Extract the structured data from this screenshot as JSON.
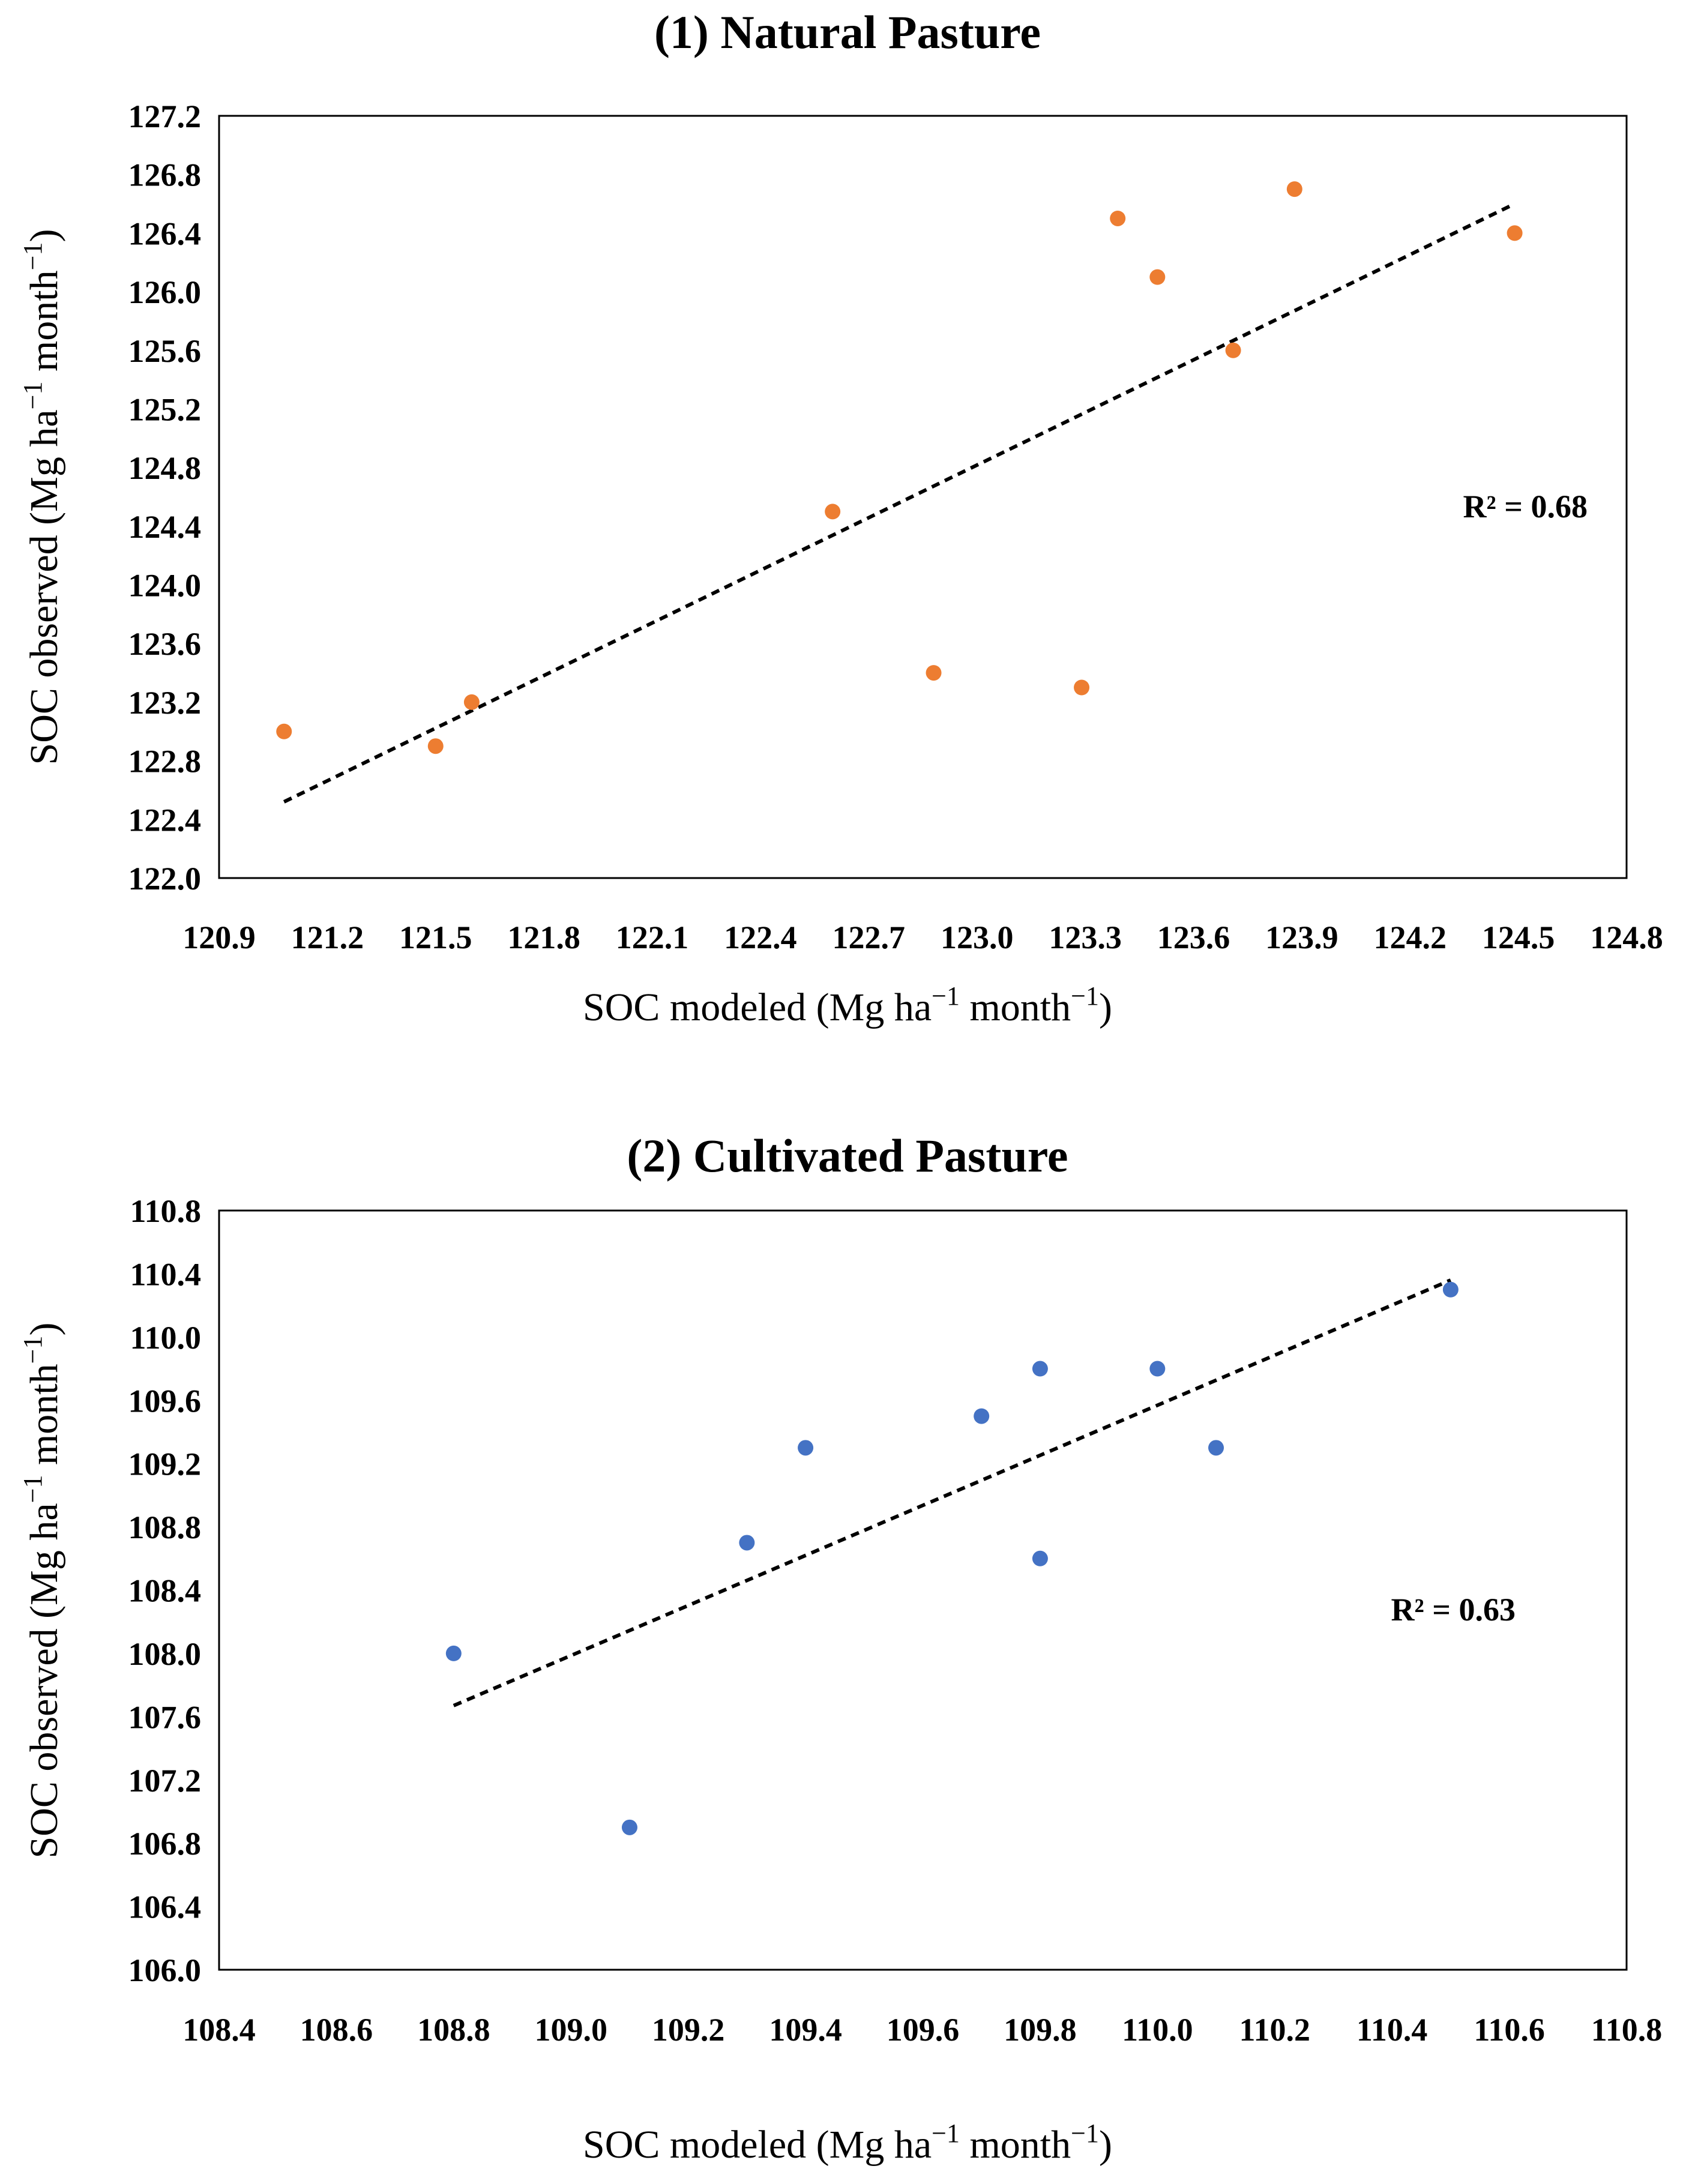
{
  "chart_data": [
    {
      "type": "scatter",
      "title": "(1) Natural Pasture",
      "xlabel_main": "SOC modeled (Mg ha",
      "ylabel_main": "SOC observed (Mg ha",
      "unit_mid": " month",
      "unit_sup": "−1",
      "unit_close": ")",
      "xlim": [
        120.9,
        124.8
      ],
      "ylim": [
        122.0,
        127.2
      ],
      "x_ticks": [
        "120.9",
        "121.2",
        "121.5",
        "121.8",
        "122.1",
        "122.4",
        "122.7",
        "123.0",
        "123.3",
        "123.6",
        "123.9",
        "124.2",
        "124.5",
        "124.8"
      ],
      "y_ticks": [
        "127.2",
        "126.8",
        "126.4",
        "126.0",
        "125.6",
        "125.2",
        "124.8",
        "124.4",
        "124.0",
        "123.6",
        "123.2",
        "122.8",
        "122.4",
        "122.0"
      ],
      "points": [
        {
          "x": 121.08,
          "y": 123.0
        },
        {
          "x": 121.5,
          "y": 122.9
        },
        {
          "x": 121.6,
          "y": 123.2
        },
        {
          "x": 122.6,
          "y": 124.5
        },
        {
          "x": 122.88,
          "y": 123.4
        },
        {
          "x": 123.29,
          "y": 123.3
        },
        {
          "x": 123.39,
          "y": 126.5
        },
        {
          "x": 123.5,
          "y": 126.1
        },
        {
          "x": 123.71,
          "y": 125.6
        },
        {
          "x": 123.88,
          "y": 126.7
        },
        {
          "x": 124.49,
          "y": 126.4
        }
      ],
      "trendline": {
        "x1": 121.08,
        "y1": 122.52,
        "x2": 124.49,
        "y2": 126.6
      },
      "r2_label": "R² = 0.68",
      "marker_color": "#ED7D31",
      "trend_color": "#000000"
    },
    {
      "type": "scatter",
      "title": "(2) Cultivated Pasture",
      "xlabel_main": "SOC modeled (Mg ha",
      "ylabel_main": "SOC observed (Mg ha",
      "unit_mid": " month",
      "unit_sup": "−1",
      "unit_close": ")",
      "xlim": [
        108.4,
        110.8
      ],
      "ylim": [
        106.0,
        110.8
      ],
      "x_ticks": [
        "108.4",
        "108.6",
        "108.8",
        "109.0",
        "109.2",
        "109.4",
        "109.6",
        "109.8",
        "110.0",
        "110.2",
        "110.4",
        "110.6",
        "110.8"
      ],
      "y_ticks": [
        "110.8",
        "110.4",
        "110.0",
        "109.6",
        "109.2",
        "108.8",
        "108.4",
        "108.0",
        "107.6",
        "107.2",
        "106.8",
        "106.4",
        "106.0"
      ],
      "points": [
        {
          "x": 108.8,
          "y": 108.0
        },
        {
          "x": 109.1,
          "y": 106.9
        },
        {
          "x": 109.3,
          "y": 108.7
        },
        {
          "x": 109.4,
          "y": 109.3
        },
        {
          "x": 109.7,
          "y": 109.5
        },
        {
          "x": 109.8,
          "y": 109.8
        },
        {
          "x": 109.8,
          "y": 108.6
        },
        {
          "x": 110.0,
          "y": 109.8
        },
        {
          "x": 110.1,
          "y": 109.3
        },
        {
          "x": 110.5,
          "y": 110.3
        }
      ],
      "trendline": {
        "x1": 108.8,
        "y1": 107.67,
        "x2": 110.5,
        "y2": 110.36
      },
      "r2_label": "R² = 0.63",
      "marker_color": "#4472C4",
      "trend_color": "#000000"
    }
  ]
}
